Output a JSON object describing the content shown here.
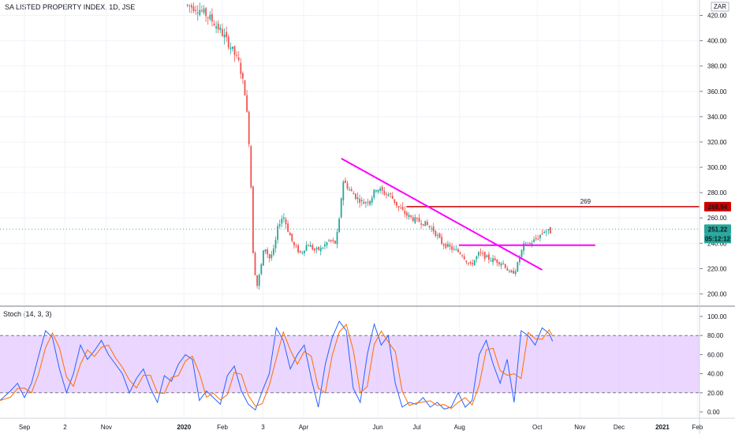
{
  "header": {
    "title": "SA LISTED PROPERTY INDEX, 1D, JSE"
  },
  "stoch_panel": {
    "title": "Stoch (14, 3, 3)"
  },
  "currency_badge": "ZAR",
  "colors": {
    "up": "#26a69a",
    "down": "#ef5350",
    "trendline": "#ff00ff",
    "resistance": "#cc0000",
    "support": "#ff00ff",
    "stoch_k": "#2962ff",
    "stoch_d": "#ff6d00",
    "stoch_band": "#e1c4ff"
  },
  "chart_data": [
    {
      "type": "candlestick",
      "title": "SA LISTED PROPERTY INDEX, 1D, JSE",
      "ylim": [
        188,
        428
      ],
      "y_ticks": [
        "420.00",
        "400.00",
        "380.00",
        "360.00",
        "340.00",
        "320.00",
        "300.00",
        "280.00",
        "260.00",
        "240.00",
        "220.00",
        "200.00"
      ],
      "x_ticks": [
        "Sep",
        "2",
        "Nov",
        "2020",
        "Feb",
        "3",
        "Apr",
        "Jun",
        "Jul",
        "Aug",
        "Oct",
        "Nov",
        "Dec",
        "2021",
        "Feb"
      ],
      "close_path": [
        [
          0.268,
          428
        ],
        [
          0.285,
          425
        ],
        [
          0.3,
          418
        ],
        [
          0.315,
          408
        ],
        [
          0.33,
          395
        ],
        [
          0.342,
          382
        ],
        [
          0.35,
          360
        ],
        [
          0.355,
          330
        ],
        [
          0.358,
          300
        ],
        [
          0.362,
          230
        ],
        [
          0.367,
          205
        ],
        [
          0.372,
          218
        ],
        [
          0.378,
          238
        ],
        [
          0.385,
          228
        ],
        [
          0.392,
          235
        ],
        [
          0.398,
          255
        ],
        [
          0.405,
          262
        ],
        [
          0.412,
          250
        ],
        [
          0.42,
          238
        ],
        [
          0.43,
          232
        ],
        [
          0.44,
          240
        ],
        [
          0.45,
          234
        ],
        [
          0.46,
          236
        ],
        [
          0.47,
          242
        ],
        [
          0.48,
          240
        ],
        [
          0.485,
          258
        ],
        [
          0.49,
          290
        ],
        [
          0.5,
          282
        ],
        [
          0.51,
          276
        ],
        [
          0.52,
          272
        ],
        [
          0.53,
          275
        ],
        [
          0.538,
          284
        ],
        [
          0.548,
          280
        ],
        [
          0.558,
          278
        ],
        [
          0.57,
          268
        ],
        [
          0.582,
          262
        ],
        [
          0.595,
          258
        ],
        [
          0.607,
          256
        ],
        [
          0.62,
          250
        ],
        [
          0.632,
          240
        ],
        [
          0.645,
          236
        ],
        [
          0.66,
          232
        ],
        [
          0.672,
          222
        ],
        [
          0.685,
          232
        ],
        [
          0.698,
          228
        ],
        [
          0.71,
          226
        ],
        [
          0.72,
          224
        ],
        [
          0.73,
          215
        ],
        [
          0.738,
          220
        ],
        [
          0.748,
          238
        ],
        [
          0.758,
          240
        ],
        [
          0.768,
          244
        ],
        [
          0.778,
          250
        ],
        [
          0.788,
          249
        ]
      ],
      "annotations": [
        {
          "text": "269",
          "value": 269
        },
        {
          "text": "268.94",
          "value": 268.94
        },
        {
          "text": "251.22",
          "value": 251.22
        },
        {
          "text": "05:12:12"
        }
      ],
      "trendline": {
        "from": [
          0.488,
          307
        ],
        "to": [
          0.775,
          219
        ]
      },
      "support": {
        "value": 238.5
      },
      "resistance": {
        "value": 268.94
      }
    },
    {
      "type": "line",
      "title": "Stoch (14, 3, 3)",
      "ylim": [
        -8,
        104
      ],
      "y_ticks": [
        "100.00",
        "80.00",
        "60.00",
        "40.00",
        "20.00",
        "0.00"
      ],
      "band": [
        20,
        80
      ],
      "series": [
        {
          "values": [
            [
              0.0,
              12
            ],
            [
              0.015,
              22
            ],
            [
              0.025,
              30
            ],
            [
              0.035,
              15
            ],
            [
              0.045,
              30
            ],
            [
              0.055,
              58
            ],
            [
              0.065,
              85
            ],
            [
              0.075,
              78
            ],
            [
              0.085,
              45
            ],
            [
              0.095,
              20
            ],
            [
              0.105,
              40
            ],
            [
              0.115,
              70
            ],
            [
              0.125,
              55
            ],
            [
              0.135,
              64
            ],
            [
              0.145,
              75
            ],
            [
              0.155,
              60
            ],
            [
              0.165,
              50
            ],
            [
              0.175,
              40
            ],
            [
              0.185,
              20
            ],
            [
              0.195,
              35
            ],
            [
              0.205,
              45
            ],
            [
              0.215,
              25
            ],
            [
              0.225,
              10
            ],
            [
              0.235,
              38
            ],
            [
              0.245,
              32
            ],
            [
              0.255,
              50
            ],
            [
              0.265,
              60
            ],
            [
              0.275,
              55
            ],
            [
              0.285,
              12
            ],
            [
              0.295,
              22
            ],
            [
              0.305,
              15
            ],
            [
              0.315,
              8
            ],
            [
              0.325,
              38
            ],
            [
              0.335,
              48
            ],
            [
              0.345,
              22
            ],
            [
              0.355,
              8
            ],
            [
              0.365,
              2
            ],
            [
              0.375,
              22
            ],
            [
              0.385,
              40
            ],
            [
              0.395,
              88
            ],
            [
              0.405,
              75
            ],
            [
              0.415,
              45
            ],
            [
              0.425,
              60
            ],
            [
              0.435,
              70
            ],
            [
              0.445,
              35
            ],
            [
              0.455,
              5
            ],
            [
              0.465,
              50
            ],
            [
              0.475,
              78
            ],
            [
              0.485,
              95
            ],
            [
              0.495,
              85
            ],
            [
              0.505,
              25
            ],
            [
              0.515,
              10
            ],
            [
              0.525,
              60
            ],
            [
              0.535,
              92
            ],
            [
              0.545,
              70
            ],
            [
              0.555,
              80
            ],
            [
              0.565,
              30
            ],
            [
              0.575,
              5
            ],
            [
              0.585,
              10
            ],
            [
              0.595,
              8
            ],
            [
              0.605,
              15
            ],
            [
              0.615,
              5
            ],
            [
              0.625,
              10
            ],
            [
              0.635,
              3
            ],
            [
              0.645,
              5
            ],
            [
              0.655,
              20
            ],
            [
              0.665,
              5
            ],
            [
              0.675,
              12
            ],
            [
              0.685,
              60
            ],
            [
              0.695,
              75
            ],
            [
              0.705,
              50
            ],
            [
              0.715,
              30
            ],
            [
              0.725,
              55
            ],
            [
              0.735,
              10
            ],
            [
              0.745,
              85
            ],
            [
              0.755,
              80
            ],
            [
              0.765,
              70
            ],
            [
              0.775,
              88
            ],
            [
              0.785,
              82
            ],
            [
              0.79,
              74
            ]
          ]
        }
      ]
    }
  ]
}
